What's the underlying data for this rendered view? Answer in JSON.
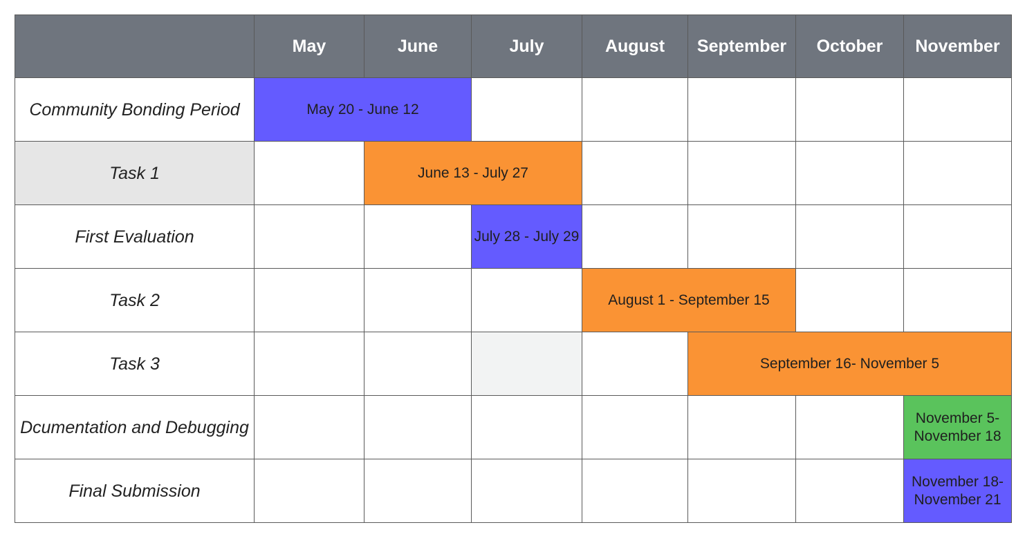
{
  "colors": {
    "header_bg": "#6f757e",
    "header_text": "#ffffff",
    "blue": "#645bff",
    "orange": "#fa9334",
    "green": "#5ac35c",
    "label_shaded": "#e6e6e6",
    "cell_shaded": "#f2f3f3"
  },
  "months": [
    "May",
    "June",
    "July",
    "August",
    "September",
    "October",
    "November"
  ],
  "rows": [
    {
      "label": "Community Bonding Period",
      "bar": {
        "text": "May 20 - June 12",
        "start": 0,
        "span": 2,
        "color": "#645bff"
      }
    },
    {
      "label": "Task 1",
      "label_shaded": true,
      "bar": {
        "text": "June 13 - July 27",
        "start": 1,
        "span": 2,
        "color": "#fa9334"
      }
    },
    {
      "label": "First Evaluation",
      "bar": {
        "text": "July 28 - July 29",
        "start": 2,
        "span": 1,
        "color": "#645bff"
      }
    },
    {
      "label": "Task 2",
      "bar": {
        "text": "August 1 - September 15",
        "start": 3,
        "span": 2,
        "color": "#fa9334"
      }
    },
    {
      "label": "Task 3",
      "shaded_cell": 2,
      "bar": {
        "text": "September 16- November 5",
        "start": 4,
        "span": 3,
        "color": "#fa9334"
      }
    },
    {
      "label": "Dcumentation and Debugging",
      "bar": {
        "text": "November 5- November 18",
        "start": 6,
        "span": 1,
        "color": "#5ac35c"
      }
    },
    {
      "label": "Final Submission",
      "bar": {
        "text": "November 18- November 21",
        "start": 6,
        "span": 1,
        "color": "#645bff"
      }
    }
  ]
}
